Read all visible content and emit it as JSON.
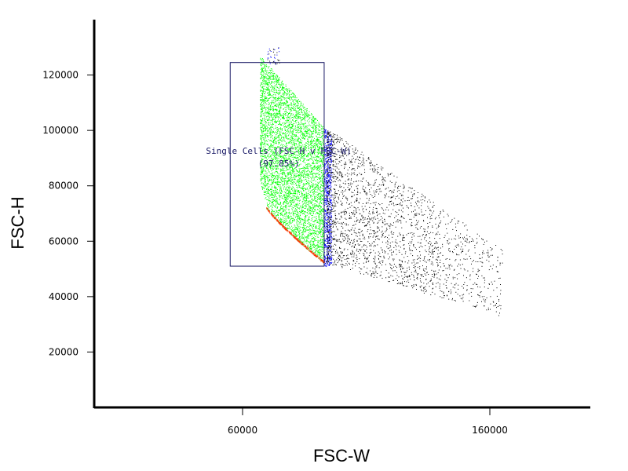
{
  "chart_data": {
    "type": "scatter",
    "title": "",
    "xlabel": "FSC-W",
    "ylabel": "FSC-H",
    "xlim": [
      0,
      200000
    ],
    "ylim": [
      0,
      140000
    ],
    "x_ticks": [
      60000,
      160000
    ],
    "y_ticks": [
      20000,
      40000,
      60000,
      80000,
      100000,
      120000
    ],
    "grid": false,
    "plot_style": "dot plot",
    "gate": {
      "name": "Single Cells (FSC-H v FSC-W)",
      "percent": "(97.85%)",
      "x_range": [
        55000,
        93000
      ],
      "y_range": [
        51000,
        124500
      ],
      "color": "#1a1a66"
    },
    "series": [
      {
        "color": "#00ff00",
        "region": "in-gate dense population",
        "x_range": [
          67000,
          93000
        ],
        "y_range": [
          51000,
          124000
        ]
      },
      {
        "color": "#0000ff",
        "region": "gate right-edge band",
        "x_range": [
          93000,
          96000
        ],
        "y_range": [
          51000,
          101000
        ]
      },
      {
        "color": "#000000",
        "region": "outside-gate doublets tail",
        "x_range": [
          93000,
          165000
        ],
        "y_range": [
          33000,
          100000
        ]
      },
      {
        "color": "#ff3300",
        "region": "lower boundary edge",
        "x_range": [
          67000,
          93000
        ],
        "y_range": [
          52000,
          72000
        ]
      }
    ]
  }
}
